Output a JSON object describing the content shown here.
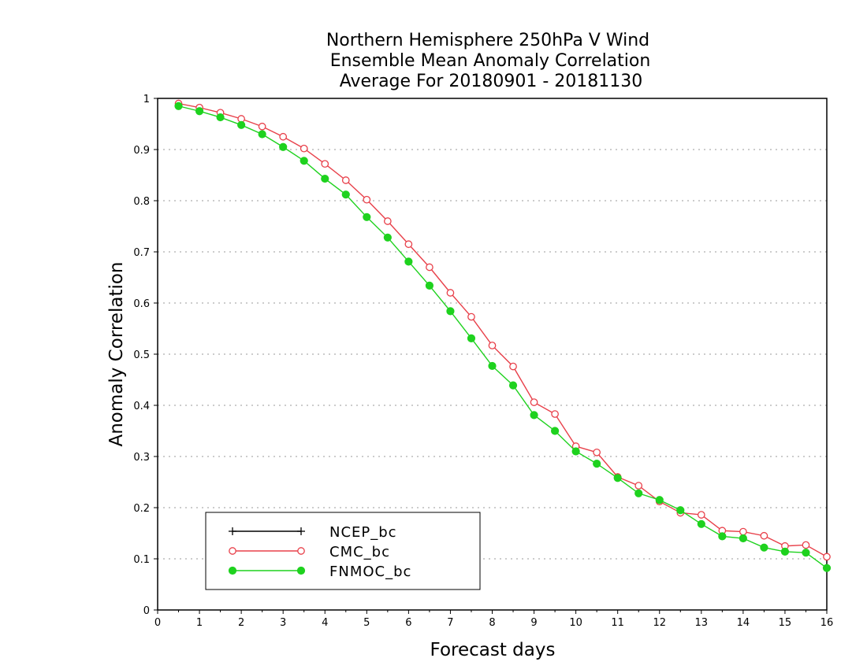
{
  "chart_data": {
    "type": "line",
    "title_lines": [
      "Northern Hemisphere 250hPa V Wind",
      "Ensemble Mean Anomaly Correlation",
      "Average For 20180901 - 20181130"
    ],
    "xlabel": "Forecast days",
    "ylabel": "Anomaly Correlation",
    "xlim": [
      0,
      16
    ],
    "ylim": [
      0,
      1
    ],
    "x_ticks": [
      "0",
      "1",
      "2",
      "3",
      "4",
      "5",
      "6",
      "7",
      "8",
      "9",
      "10",
      "11",
      "12",
      "13",
      "14",
      "15",
      "16"
    ],
    "y_ticks": [
      "0",
      "0.1",
      "0.2",
      "0.3",
      "0.4",
      "0.5",
      "0.6",
      "0.7",
      "0.8",
      "0.9",
      "1"
    ],
    "grid": "horizontal dotted",
    "legend_position": "bottom-left",
    "series": [
      {
        "name": "NCEP_bc",
        "color": "#000000",
        "marker": "plus",
        "x": [],
        "values": []
      },
      {
        "name": "CMC_bc",
        "color": "#e8404a",
        "marker": "open-circle",
        "x": [
          0.5,
          1,
          1.5,
          2,
          2.5,
          3,
          3.5,
          4,
          4.5,
          5,
          5.5,
          6,
          6.5,
          7,
          7.5,
          8,
          8.5,
          9,
          9.5,
          10,
          10.5,
          11,
          11.5,
          12,
          12.5,
          13,
          13.5,
          14,
          14.5,
          15,
          15.5,
          16
        ],
        "values": [
          0.99,
          0.982,
          0.972,
          0.96,
          0.945,
          0.925,
          0.902,
          0.872,
          0.84,
          0.802,
          0.76,
          0.715,
          0.67,
          0.62,
          0.573,
          0.517,
          0.476,
          0.406,
          0.383,
          0.32,
          0.308,
          0.26,
          0.243,
          0.212,
          0.19,
          0.186,
          0.155,
          0.153,
          0.145,
          0.125,
          0.127,
          0.104
        ]
      },
      {
        "name": "FNMOC_bc",
        "color": "#1ed21e",
        "marker": "filled-circle",
        "x": [
          0.5,
          1,
          1.5,
          2,
          2.5,
          3,
          3.5,
          4,
          4.5,
          5,
          5.5,
          6,
          6.5,
          7,
          7.5,
          8,
          8.5,
          9,
          9.5,
          10,
          10.5,
          11,
          11.5,
          12,
          12.5,
          13,
          13.5,
          14,
          14.5,
          15,
          15.5,
          16
        ],
        "values": [
          0.985,
          0.975,
          0.963,
          0.948,
          0.93,
          0.905,
          0.878,
          0.843,
          0.812,
          0.768,
          0.728,
          0.681,
          0.634,
          0.584,
          0.531,
          0.477,
          0.439,
          0.381,
          0.35,
          0.31,
          0.286,
          0.258,
          0.228,
          0.215,
          0.195,
          0.168,
          0.144,
          0.14,
          0.122,
          0.114,
          0.112,
          0.082
        ]
      }
    ]
  }
}
